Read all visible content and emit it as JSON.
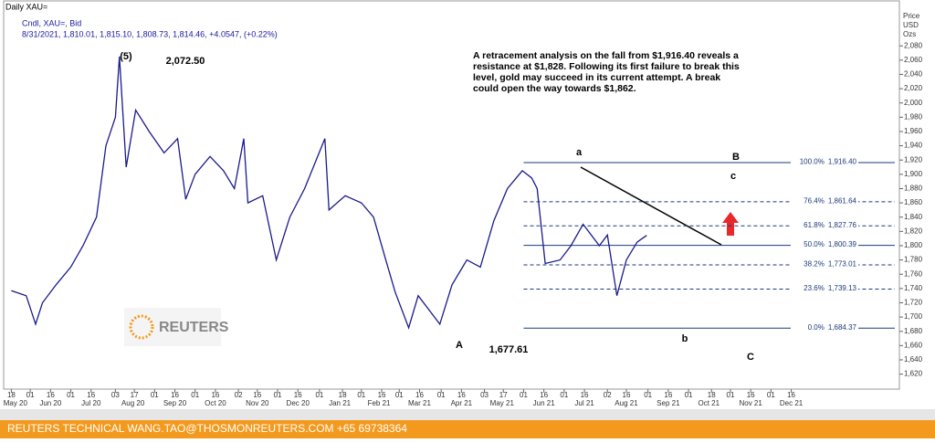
{
  "chart_data": {
    "type": "line",
    "title": "Daily XAU=",
    "subtitle": "Cndl, XAU=, Bid",
    "quote": "8/31/2021, 1,810.01, 1,815.10, 1,808.73, 1,814.46, +4.0547, (+0.22%)",
    "axis_title": [
      "Price",
      "USD",
      "Ozs"
    ],
    "series": [
      {
        "name": "XAU=",
        "color": "#1a1a8c",
        "x": [
          "2020-05-18",
          "2020-05-29",
          "2020-06-05",
          "2020-06-10",
          "2020-06-20",
          "2020-07-01",
          "2020-07-10",
          "2020-07-20",
          "2020-07-27",
          "2020-08-03",
          "2020-08-06",
          "2020-08-11",
          "2020-08-18",
          "2020-08-28",
          "2020-09-08",
          "2020-09-18",
          "2020-09-24",
          "2020-10-01",
          "2020-10-12",
          "2020-10-22",
          "2020-10-30",
          "2020-11-06",
          "2020-11-09",
          "2020-11-20",
          "2020-11-30",
          "2020-12-10",
          "2020-12-21",
          "2021-01-05",
          "2021-01-08",
          "2021-01-20",
          "2021-02-01",
          "2021-02-10",
          "2021-02-19",
          "2021-02-26",
          "2021-03-08",
          "2021-03-15",
          "2021-03-31",
          "2021-04-09",
          "2021-04-20",
          "2021-04-30",
          "2021-05-10",
          "2021-05-20",
          "2021-05-31",
          "2021-06-07",
          "2021-06-11",
          "2021-06-17",
          "2021-06-28",
          "2021-07-06",
          "2021-07-15",
          "2021-07-27",
          "2021-08-02",
          "2021-08-09",
          "2021-08-16",
          "2021-08-24",
          "2021-08-31"
        ],
        "values": [
          1737,
          1730,
          1690,
          1720,
          1745,
          1770,
          1800,
          1840,
          1940,
          1980,
          2065,
          1910,
          1990,
          1960,
          1930,
          1950,
          1865,
          1900,
          1925,
          1905,
          1880,
          1950,
          1860,
          1870,
          1780,
          1840,
          1880,
          1950,
          1850,
          1870,
          1860,
          1840,
          1780,
          1735,
          1685,
          1730,
          1690,
          1745,
          1780,
          1770,
          1835,
          1880,
          1905,
          1895,
          1880,
          1775,
          1780,
          1800,
          1830,
          1800,
          1815,
          1730,
          1780,
          1805,
          1814.46
        ]
      }
    ],
    "xlim": [
      "2020-05-13",
      "2022-03-06"
    ],
    "xticks": [
      {
        "value": "2020-05-18",
        "label": "18"
      },
      {
        "value": "2020-06-01",
        "label": "01"
      },
      {
        "value": "2020-06-16",
        "label": "16"
      },
      {
        "value": "2020-07-01",
        "label": "01"
      },
      {
        "value": "2020-07-16",
        "label": "16"
      },
      {
        "value": "2020-08-03",
        "label": "03"
      },
      {
        "value": "2020-08-17",
        "label": "17"
      },
      {
        "value": "2020-09-01",
        "label": "01"
      },
      {
        "value": "2020-09-16",
        "label": "16"
      },
      {
        "value": "2020-10-01",
        "label": "01"
      },
      {
        "value": "2020-10-16",
        "label": "16"
      },
      {
        "value": "2020-11-02",
        "label": "02"
      },
      {
        "value": "2020-11-16",
        "label": "16"
      },
      {
        "value": "2020-12-01",
        "label": "01"
      },
      {
        "value": "2020-12-16",
        "label": "16"
      },
      {
        "value": "2021-01-01",
        "label": "01"
      },
      {
        "value": "2021-01-18",
        "label": "18"
      },
      {
        "value": "2021-02-01",
        "label": "01"
      },
      {
        "value": "2021-02-16",
        "label": "16"
      },
      {
        "value": "2021-03-01",
        "label": "01"
      },
      {
        "value": "2021-03-16",
        "label": "16"
      },
      {
        "value": "2021-04-01",
        "label": "01"
      },
      {
        "value": "2021-04-16",
        "label": "16"
      },
      {
        "value": "2021-05-03",
        "label": "03"
      },
      {
        "value": "2021-05-17",
        "label": "17"
      },
      {
        "value": "2021-06-01",
        "label": "01"
      },
      {
        "value": "2021-06-16",
        "label": "16"
      },
      {
        "value": "2021-07-01",
        "label": "01"
      },
      {
        "value": "2021-07-16",
        "label": "16"
      },
      {
        "value": "2021-08-02",
        "label": "02"
      },
      {
        "value": "2021-08-16",
        "label": "16"
      },
      {
        "value": "2021-09-01",
        "label": "01"
      },
      {
        "value": "2021-09-16",
        "label": "16"
      },
      {
        "value": "2021-10-01",
        "label": "01"
      },
      {
        "value": "2021-10-18",
        "label": "18"
      },
      {
        "value": "2021-11-01",
        "label": "01"
      },
      {
        "value": "2021-11-16",
        "label": "16"
      },
      {
        "value": "2021-12-01",
        "label": "01"
      },
      {
        "value": "2021-12-16",
        "label": "16"
      }
    ],
    "month_labels": [
      {
        "value": "2020-05-21",
        "label": "May 20"
      },
      {
        "value": "2020-06-16",
        "label": "Jun 20"
      },
      {
        "value": "2020-07-16",
        "label": "Jul 20"
      },
      {
        "value": "2020-08-16",
        "label": "Aug 20"
      },
      {
        "value": "2020-09-16",
        "label": "Sep 20"
      },
      {
        "value": "2020-10-16",
        "label": "Oct 20"
      },
      {
        "value": "2020-11-16",
        "label": "Nov 20"
      },
      {
        "value": "2020-12-16",
        "label": "Dec 20"
      },
      {
        "value": "2021-01-16",
        "label": "Jan 21"
      },
      {
        "value": "2021-02-14",
        "label": "Feb 21"
      },
      {
        "value": "2021-03-16",
        "label": "Mar 21"
      },
      {
        "value": "2021-04-16",
        "label": "Apr 21"
      },
      {
        "value": "2021-05-16",
        "label": "May 21"
      },
      {
        "value": "2021-06-16",
        "label": "Jun 21"
      },
      {
        "value": "2021-07-16",
        "label": "Jul 21"
      },
      {
        "value": "2021-08-16",
        "label": "Aug 21"
      },
      {
        "value": "2021-09-16",
        "label": "Sep 21"
      },
      {
        "value": "2021-10-16",
        "label": "Oct 21"
      },
      {
        "value": "2021-11-16",
        "label": "Nov 21"
      },
      {
        "value": "2021-12-16",
        "label": "Dec 21"
      }
    ],
    "ylim": [
      1599,
      2143
    ],
    "yticks": [
      {
        "value": 1620,
        "label": "1,620"
      },
      {
        "value": 1640,
        "label": "1,640"
      },
      {
        "value": 1660,
        "label": "1,660"
      },
      {
        "value": 1680,
        "label": "1,680"
      },
      {
        "value": 1700,
        "label": "1,700"
      },
      {
        "value": 1720,
        "label": "1,720"
      },
      {
        "value": 1740,
        "label": "1,740"
      },
      {
        "value": 1760,
        "label": "1,760"
      },
      {
        "value": 1780,
        "label": "1,780"
      },
      {
        "value": 1800,
        "label": "1,800"
      },
      {
        "value": 1820,
        "label": "1,820"
      },
      {
        "value": 1840,
        "label": "1,840"
      },
      {
        "value": 1860,
        "label": "1,860"
      },
      {
        "value": 1880,
        "label": "1,880"
      },
      {
        "value": 1900,
        "label": "1,900"
      },
      {
        "value": 1920,
        "label": "1,920"
      },
      {
        "value": 1940,
        "label": "1,940"
      },
      {
        "value": 1960,
        "label": "1,960"
      },
      {
        "value": 1980,
        "label": "1,980"
      },
      {
        "value": 2000,
        "label": "2,000"
      },
      {
        "value": 2020,
        "label": "2,020"
      },
      {
        "value": 2040,
        "label": "2,040"
      },
      {
        "value": 2060,
        "label": "2,060"
      },
      {
        "value": 2080,
        "label": "2,080"
      }
    ],
    "fib_levels": [
      {
        "label": "100.0%",
        "value": 1916.4,
        "value_label": "1,916.40",
        "style": "solid"
      },
      {
        "label": "76.4%",
        "value": 1861.64,
        "value_label": "1,861.64",
        "style": "dashed"
      },
      {
        "label": "61.8%",
        "value": 1827.76,
        "value_label": "1,827.76",
        "style": "dashed"
      },
      {
        "label": "50.0%",
        "value": 1800.39,
        "value_label": "1,800.39",
        "style": "solid"
      },
      {
        "label": "38.2%",
        "value": 1773.01,
        "value_label": "1,773.01",
        "style": "dashed"
      },
      {
        "label": "23.6%",
        "value": 1739.13,
        "value_label": "1,739.13",
        "style": "dashed"
      },
      {
        "label": "0.0%",
        "value": 1684.37,
        "value_label": "1,684.37",
        "style": "solid"
      }
    ],
    "annotations": [
      "(5)",
      "2,072.50",
      "A",
      "1,677.61",
      "a",
      "b",
      "B",
      "c",
      "C"
    ],
    "note": [
      "A retracement analysis on the fall from $1,916.40 reveals a",
      "resistance at $1,828. Following its first failure to break this",
      "level, gold may succeed in its current attempt. A break",
      "could open the way towards $1,862."
    ],
    "logo": "REUTERS",
    "footer": "REUTERS TECHNICAL  WANG.TAO@THOSMONREUTERS.COM  +65 69738364"
  }
}
